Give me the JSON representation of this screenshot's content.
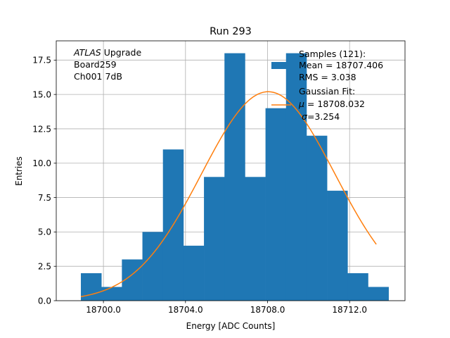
{
  "chart_data": {
    "type": "histogram",
    "title": "Run 293",
    "xlabel": "Energy [ADC Counts]",
    "ylabel": "Entries",
    "xlim": [
      18697.7,
      18714.7
    ],
    "ylim": [
      0,
      18.9
    ],
    "grid": true,
    "bin_width": 1.0,
    "bin_edges": [
      18698.9,
      18699.9,
      18700.9,
      18701.9,
      18702.9,
      18703.9,
      18704.9,
      18705.9,
      18706.9,
      18707.9,
      18708.9,
      18709.9,
      18710.9,
      18711.9,
      18712.9,
      18713.9
    ],
    "counts": [
      2,
      1,
      3,
      5,
      11,
      4,
      9,
      18,
      9,
      14,
      18,
      12,
      8,
      2,
      1
    ],
    "xticks": [
      18700.0,
      18704.0,
      18708.0,
      18712.0
    ],
    "xtick_labels": [
      "18700.0",
      "18704.0",
      "18708.0",
      "18712.0"
    ],
    "yticks": [
      0,
      2.5,
      5,
      7.5,
      10,
      12.5,
      15,
      17.5
    ],
    "ytick_labels": [
      "0.0",
      "2.5",
      "5.0",
      "7.5",
      "10.0",
      "12.5",
      "15.0",
      "17.5"
    ],
    "fit": {
      "type": "gaussian",
      "mu": 18708.032,
      "sigma": 3.254,
      "x_range": [
        18698.9,
        18713.3
      ],
      "peak": 15.2
    },
    "colors": {
      "histogram": "#1f77b4",
      "fit": "#ff7f0e",
      "grid": "#b0b0b0"
    },
    "annotation": {
      "italic_word": "ATLAS",
      "line1_rest": " Upgrade",
      "line2": " Board259",
      "line3": " Ch001 7dB"
    },
    "legend": {
      "location": "upper right",
      "samples_title": "Samples (121):",
      "samples_mean": " Mean = 18707.406",
      "samples_rms": " RMS = 3.038",
      "fit_title": "Gaussian Fit:",
      "fit_mu_symbol": "μ",
      "fit_mu_text": " = 18708.032",
      "fit_sigma_symbol": "σ",
      "fit_sigma_text": "=3.254"
    }
  }
}
